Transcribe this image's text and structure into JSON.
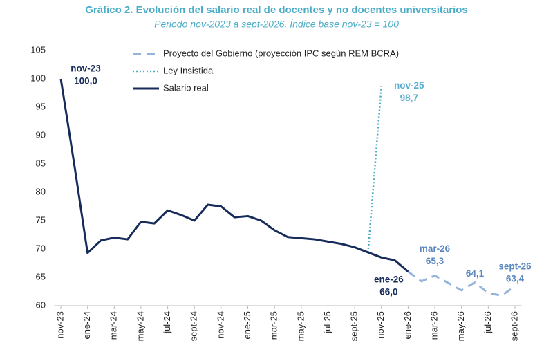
{
  "chart_data": {
    "type": "line",
    "title": "Gráfico 2. Evolución del salario real de docentes y no docentes universitarios",
    "subtitle": "Periodo nov-2023 a sept-2026. Índice base nov-23 = 100",
    "categories": [
      "nov-23",
      null,
      "ene-24",
      null,
      "mar-24",
      null,
      "may-24",
      null,
      "jul-24",
      null,
      "sept-24",
      null,
      "nov-24",
      null,
      "ene-25",
      null,
      "mar-25",
      null,
      "may-25",
      null,
      "jul-25",
      null,
      "sept-25",
      null,
      "nov-25",
      null,
      "ene-26",
      null,
      "mar-26",
      null,
      "may-26",
      null,
      "jul-26",
      null,
      "sept-26"
    ],
    "series": [
      {
        "name": "Proyecto del Gobierno (proyección IPC según REM BCRA)",
        "color": "#95b4d9",
        "dash": "dashed",
        "label_color": "#5b87c0",
        "values": [
          null,
          null,
          null,
          null,
          null,
          null,
          null,
          null,
          null,
          null,
          null,
          null,
          null,
          null,
          null,
          null,
          null,
          null,
          null,
          null,
          null,
          null,
          null,
          null,
          null,
          null,
          66.0,
          64.3,
          65.3,
          64.0,
          62.7,
          64.1,
          62.2,
          61.8,
          63.4
        ],
        "value_labels": [
          null,
          null,
          null,
          null,
          null,
          null,
          null,
          null,
          null,
          null,
          null,
          null,
          null,
          null,
          null,
          null,
          null,
          null,
          null,
          null,
          null,
          null,
          null,
          null,
          null,
          null,
          null,
          null,
          "65,3",
          null,
          null,
          "64,1",
          null,
          null,
          "63,4"
        ]
      },
      {
        "name": "Ley Insistida",
        "color": "#4bacc6",
        "dash": "dotted",
        "label_color": "#5aaed0",
        "values": [
          null,
          null,
          null,
          null,
          null,
          null,
          null,
          null,
          null,
          null,
          null,
          null,
          null,
          null,
          null,
          null,
          null,
          null,
          null,
          null,
          null,
          null,
          null,
          69.4,
          98.7,
          null,
          null,
          null,
          null,
          null,
          null,
          null,
          null,
          null,
          null
        ],
        "value_labels": [
          null,
          null,
          null,
          null,
          null,
          null,
          null,
          null,
          null,
          null,
          null,
          null,
          null,
          null,
          null,
          null,
          null,
          null,
          null,
          null,
          null,
          null,
          null,
          null,
          "98,7",
          null,
          null,
          null,
          null,
          null,
          null,
          null,
          null,
          null,
          null
        ]
      },
      {
        "name": "Salario real",
        "color": "#172c5a",
        "dash": "solid",
        "label_color": "#172c5a",
        "values": [
          100.0,
          85.0,
          69.3,
          71.5,
          72.0,
          71.7,
          74.8,
          74.5,
          76.8,
          76.0,
          75.0,
          77.8,
          77.5,
          75.6,
          75.8,
          75.0,
          73.3,
          72.1,
          71.9,
          71.7,
          71.3,
          70.9,
          70.3,
          69.4,
          68.5,
          68.0,
          66.0,
          null,
          null,
          null,
          null,
          null,
          null,
          null,
          null
        ],
        "value_labels": [
          "100,0",
          null,
          null,
          null,
          null,
          null,
          null,
          null,
          null,
          null,
          null,
          null,
          null,
          null,
          null,
          null,
          null,
          null,
          null,
          null,
          null,
          null,
          null,
          null,
          null,
          null,
          "66,0",
          null,
          null,
          null,
          null,
          null,
          null,
          null,
          null
        ]
      }
    ],
    "ylim": [
      60,
      105
    ],
    "yticks": [
      60,
      65,
      70,
      75,
      80,
      85,
      90,
      95,
      100,
      105
    ]
  }
}
